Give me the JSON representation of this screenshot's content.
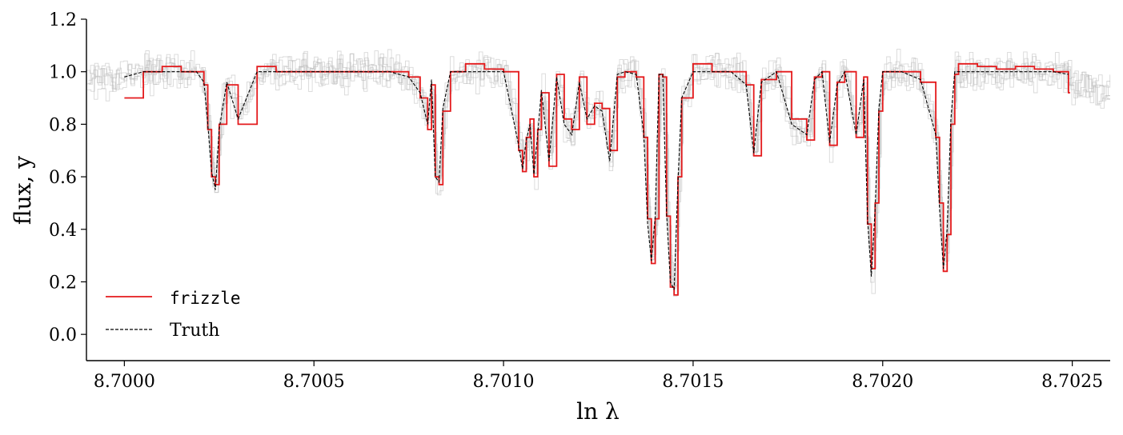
{
  "chart_data": {
    "type": "line",
    "xlabel": "ln λ",
    "ylabel": "flux, y",
    "xlim": [
      8.6999,
      8.7026
    ],
    "ylim": [
      -0.1,
      1.2
    ],
    "x_ticks": [
      "8.7000",
      "8.7005",
      "8.7010",
      "8.7015",
      "8.7020",
      "8.7025"
    ],
    "y_ticks": [
      "0.0",
      "0.2",
      "0.4",
      "0.6",
      "0.8",
      "1.0",
      "1.2"
    ],
    "grid": false,
    "legend_position": "lower-left",
    "series": [
      {
        "name": "frizzle",
        "style": "step",
        "color": "#e41a1c",
        "x": [
          8.7,
          8.70005,
          8.7001,
          8.70015,
          8.70019,
          8.70021,
          8.70022,
          8.70023,
          8.70024,
          8.70025,
          8.70027,
          8.7003,
          8.70035,
          8.7004,
          8.70045,
          8.7005,
          8.70055,
          8.7006,
          8.70065,
          8.7007,
          8.70075,
          8.70078,
          8.7008,
          8.70081,
          8.70082,
          8.70083,
          8.70084,
          8.70086,
          8.7009,
          8.70095,
          8.701,
          8.70104,
          8.70105,
          8.70106,
          8.70107,
          8.70108,
          8.70109,
          8.7011,
          8.70112,
          8.70114,
          8.70116,
          8.70118,
          8.7012,
          8.70122,
          8.70124,
          8.70126,
          8.70128,
          8.7013,
          8.70132,
          8.70135,
          8.70137,
          8.70138,
          8.70139,
          8.7014,
          8.70141,
          8.70142,
          8.70143,
          8.70144,
          8.70145,
          8.70146,
          8.70147,
          8.7015,
          8.70155,
          8.7016,
          8.70164,
          8.70166,
          8.70168,
          8.70172,
          8.70176,
          8.7018,
          8.70182,
          8.70184,
          8.70186,
          8.70188,
          8.7019,
          8.70193,
          8.70195,
          8.70196,
          8.70197,
          8.70198,
          8.70199,
          8.702,
          8.70202,
          8.70205,
          8.7021,
          8.70214,
          8.70215,
          8.70216,
          8.70217,
          8.70218,
          8.70219,
          8.7022,
          8.70225,
          8.7023,
          8.70235,
          8.7024,
          8.70245,
          8.70249
        ],
        "values": [
          0.9,
          1.0,
          1.02,
          1.0,
          1.0,
          0.95,
          0.78,
          0.6,
          0.57,
          0.8,
          0.95,
          0.8,
          1.02,
          1.0,
          1.0,
          1.0,
          1.0,
          1.0,
          1.0,
          1.0,
          0.98,
          0.9,
          0.78,
          0.95,
          0.6,
          0.57,
          0.85,
          1.0,
          1.03,
          1.01,
          1.0,
          0.7,
          0.62,
          0.75,
          0.82,
          0.6,
          0.78,
          0.92,
          0.64,
          0.99,
          0.82,
          0.78,
          0.98,
          0.8,
          0.88,
          0.86,
          0.7,
          0.98,
          1.0,
          0.98,
          0.75,
          0.44,
          0.27,
          0.44,
          0.99,
          0.98,
          0.45,
          0.18,
          0.15,
          0.6,
          0.9,
          1.03,
          1.0,
          1.0,
          0.95,
          0.68,
          0.97,
          1.0,
          0.82,
          0.74,
          0.98,
          1.0,
          0.72,
          0.96,
          1.0,
          0.75,
          0.98,
          0.42,
          0.25,
          0.5,
          0.85,
          1.0,
          1.0,
          1.0,
          0.96,
          0.75,
          0.5,
          0.24,
          0.38,
          0.8,
          0.99,
          1.03,
          1.02,
          1.01,
          1.02,
          1.01,
          1.0,
          0.92
        ]
      },
      {
        "name": "Truth",
        "style": "dashed",
        "color": "#000000",
        "x": [
          8.7,
          8.70005,
          8.7001,
          8.70015,
          8.70019,
          8.70021,
          8.70022,
          8.70023,
          8.70024,
          8.70025,
          8.70027,
          8.7003,
          8.70035,
          8.7004,
          8.70045,
          8.7005,
          8.70055,
          8.7006,
          8.70065,
          8.7007,
          8.70075,
          8.70078,
          8.7008,
          8.70081,
          8.70082,
          8.70083,
          8.70084,
          8.70086,
          8.7009,
          8.70095,
          8.701,
          8.70104,
          8.70105,
          8.70106,
          8.70107,
          8.70108,
          8.70109,
          8.7011,
          8.70112,
          8.70114,
          8.70116,
          8.70118,
          8.7012,
          8.70122,
          8.70124,
          8.70126,
          8.70128,
          8.7013,
          8.70132,
          8.70135,
          8.70137,
          8.70138,
          8.70139,
          8.7014,
          8.70141,
          8.70142,
          8.70143,
          8.70144,
          8.70145,
          8.70146,
          8.70147,
          8.7015,
          8.70155,
          8.7016,
          8.70164,
          8.70166,
          8.70168,
          8.70172,
          8.70176,
          8.7018,
          8.70182,
          8.70184,
          8.70186,
          8.70188,
          8.7019,
          8.70193,
          8.70195,
          8.70196,
          8.70197,
          8.70198,
          8.70199,
          8.702,
          8.70202,
          8.70205,
          8.7021,
          8.70214,
          8.70215,
          8.70216,
          8.70217,
          8.70218,
          8.70219,
          8.7022,
          8.70225,
          8.7023,
          8.70235,
          8.7024,
          8.70245,
          8.70249
        ],
        "values": [
          0.98,
          1.0,
          1.0,
          1.0,
          1.0,
          0.96,
          0.8,
          0.62,
          0.55,
          0.78,
          0.96,
          0.82,
          1.0,
          1.0,
          1.0,
          1.0,
          1.0,
          1.0,
          1.0,
          1.0,
          0.98,
          0.92,
          0.8,
          0.97,
          0.6,
          0.58,
          0.86,
          1.0,
          1.0,
          1.0,
          1.0,
          0.72,
          0.63,
          0.74,
          0.8,
          0.61,
          0.76,
          0.93,
          0.66,
          0.98,
          0.8,
          0.76,
          0.96,
          0.82,
          0.87,
          0.85,
          0.66,
          0.99,
          1.0,
          0.99,
          0.76,
          0.42,
          0.28,
          0.45,
          0.99,
          0.99,
          0.46,
          0.2,
          0.17,
          0.58,
          0.9,
          1.0,
          1.0,
          1.0,
          0.95,
          0.69,
          0.96,
          1.0,
          0.8,
          0.76,
          0.97,
          1.0,
          0.73,
          0.95,
          1.0,
          0.76,
          0.97,
          0.44,
          0.22,
          0.48,
          0.86,
          1.0,
          1.0,
          1.0,
          0.97,
          0.76,
          0.48,
          0.25,
          0.4,
          0.82,
          1.0,
          1.0,
          1.0,
          1.0,
          1.0,
          1.0,
          1.0,
          0.99
        ]
      }
    ]
  }
}
